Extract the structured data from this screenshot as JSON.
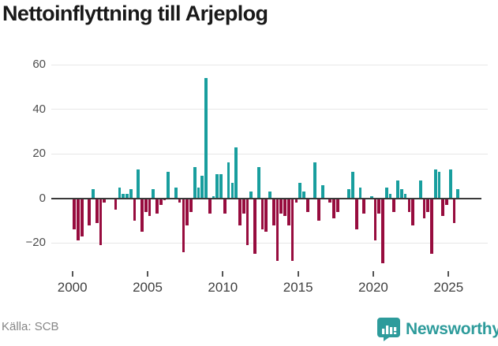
{
  "chart_data": {
    "type": "bar",
    "title": "Nettoinflyttning till Arjeplog",
    "source": "Källa: SCB",
    "frequency": "quarterly",
    "start_period": "2000Q1",
    "end_period": "2025Q3",
    "grid": true,
    "legend": false,
    "ylim": [
      -32,
      62
    ],
    "x_tick_years": [
      2000,
      2005,
      2010,
      2015,
      2020,
      2025
    ],
    "x_tick_labels": [
      "2000",
      "2005",
      "2010",
      "2015",
      "2020",
      "2025"
    ],
    "y_tick_values": [
      60,
      40,
      20,
      0,
      -20
    ],
    "y_tick_labels": [
      "60",
      "40",
      "20",
      "0",
      "−20"
    ],
    "colors": {
      "positive": "#189e9e",
      "negative": "#970c3e",
      "zero_line": "#3a3a3a",
      "gridline": "#e7e7e7",
      "brand_teal": "#2d9b9b"
    },
    "values": [
      -14,
      -19,
      -17,
      0,
      -12,
      4,
      -11,
      -21,
      -2,
      0,
      0,
      -5,
      5,
      2,
      2,
      4,
      -10,
      13,
      -15,
      -6,
      -8,
      4,
      -7,
      -3,
      -1,
      12,
      0,
      5,
      -2,
      -24,
      -12,
      -6,
      14,
      5,
      10,
      54,
      -7,
      1,
      11,
      11,
      -7,
      16,
      7,
      23,
      -12,
      -7,
      -21,
      3,
      -25,
      14,
      -14,
      -15,
      3,
      -12,
      -28,
      -7,
      -8,
      -12,
      -28,
      -2,
      7,
      3,
      -6,
      0,
      16,
      -10,
      6,
      0,
      -2,
      -9,
      -6,
      0,
      0,
      4,
      12,
      -14,
      5,
      -7,
      0,
      1,
      -19,
      -7,
      -29,
      5,
      2,
      -6,
      8,
      4,
      2,
      -6,
      -12,
      0,
      8,
      -9,
      -6,
      -25,
      13,
      12,
      -8,
      -3,
      13,
      -11,
      4
    ]
  },
  "footer": {
    "brand": "Newsworthy"
  }
}
